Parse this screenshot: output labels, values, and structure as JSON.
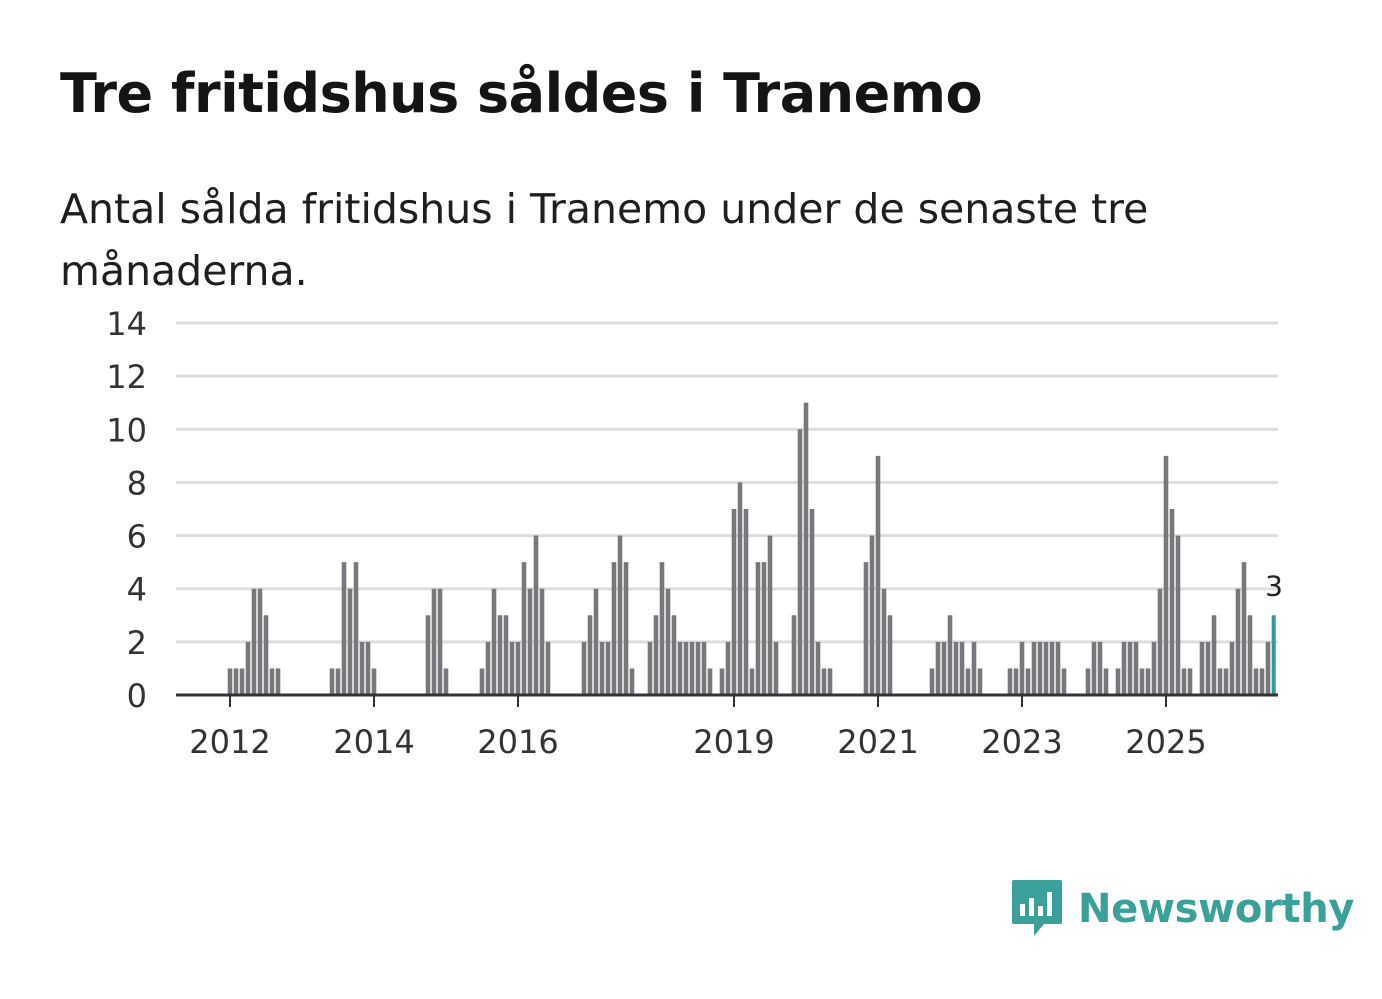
{
  "title": "Tre fritidshus såldes i Tranemo",
  "subtitle": "Antal sålda fritidshus i Tranemo under de senaste tre månaderna.",
  "brand": {
    "name": "Newsworthy",
    "icon": "newsworthy-logo-icon",
    "color": "#3aa09a"
  },
  "colors": {
    "bar": "#78777c",
    "highlight": "#2a9d96",
    "grid": "#dddddd",
    "axis": "#333333"
  },
  "chart_data": {
    "type": "bar",
    "title": "Tre fritidshus såldes i Tranemo",
    "xlabel": "",
    "ylabel": "",
    "ylim": [
      0,
      14
    ],
    "yticks": [
      0,
      2,
      4,
      6,
      8,
      10,
      12,
      14
    ],
    "xtick_labels": [
      {
        "label": "2012",
        "month_index": 0
      },
      {
        "label": "2014",
        "month_index": 24
      },
      {
        "label": "2016",
        "month_index": 48
      },
      {
        "label": "2019",
        "month_index": 84
      },
      {
        "label": "2021",
        "month_index": 108
      },
      {
        "label": "2023",
        "month_index": 132
      },
      {
        "label": "2025",
        "month_index": 156
      }
    ],
    "start_month_index": -9,
    "values": [
      0,
      0,
      0,
      0,
      0,
      0,
      0,
      0,
      0,
      1,
      1,
      1,
      2,
      4,
      4,
      3,
      1,
      1,
      0,
      0,
      0,
      0,
      0,
      0,
      0,
      0,
      1,
      1,
      5,
      4,
      5,
      2,
      2,
      1,
      0,
      0,
      0,
      0,
      0,
      0,
      0,
      0,
      3,
      4,
      4,
      1,
      0,
      0,
      0,
      0,
      0,
      1,
      2,
      4,
      3,
      3,
      2,
      2,
      5,
      4,
      6,
      4,
      2,
      0,
      0,
      0,
      0,
      0,
      2,
      3,
      4,
      2,
      2,
      5,
      6,
      5,
      1,
      0,
      0,
      2,
      3,
      5,
      4,
      3,
      2,
      2,
      2,
      2,
      2,
      1,
      0,
      1,
      2,
      7,
      8,
      7,
      1,
      5,
      5,
      6,
      2,
      0,
      0,
      3,
      10,
      11,
      7,
      2,
      1,
      1,
      0,
      0,
      0,
      0,
      0,
      5,
      6,
      9,
      4,
      3,
      0,
      0,
      0,
      0,
      0,
      0,
      1,
      2,
      2,
      3,
      2,
      2,
      1,
      2,
      1,
      0,
      0,
      0,
      0,
      1,
      1,
      2,
      1,
      2,
      2,
      2,
      2,
      2,
      1,
      0,
      0,
      0,
      1,
      2,
      2,
      1,
      0,
      1,
      2,
      2,
      2,
      1,
      1,
      2,
      4,
      9,
      7,
      6,
      1,
      1,
      0,
      2,
      2,
      3,
      1,
      1,
      2,
      4,
      5,
      3,
      1,
      1,
      2,
      3
    ],
    "highlight_last": true,
    "last_value_label": "3"
  }
}
